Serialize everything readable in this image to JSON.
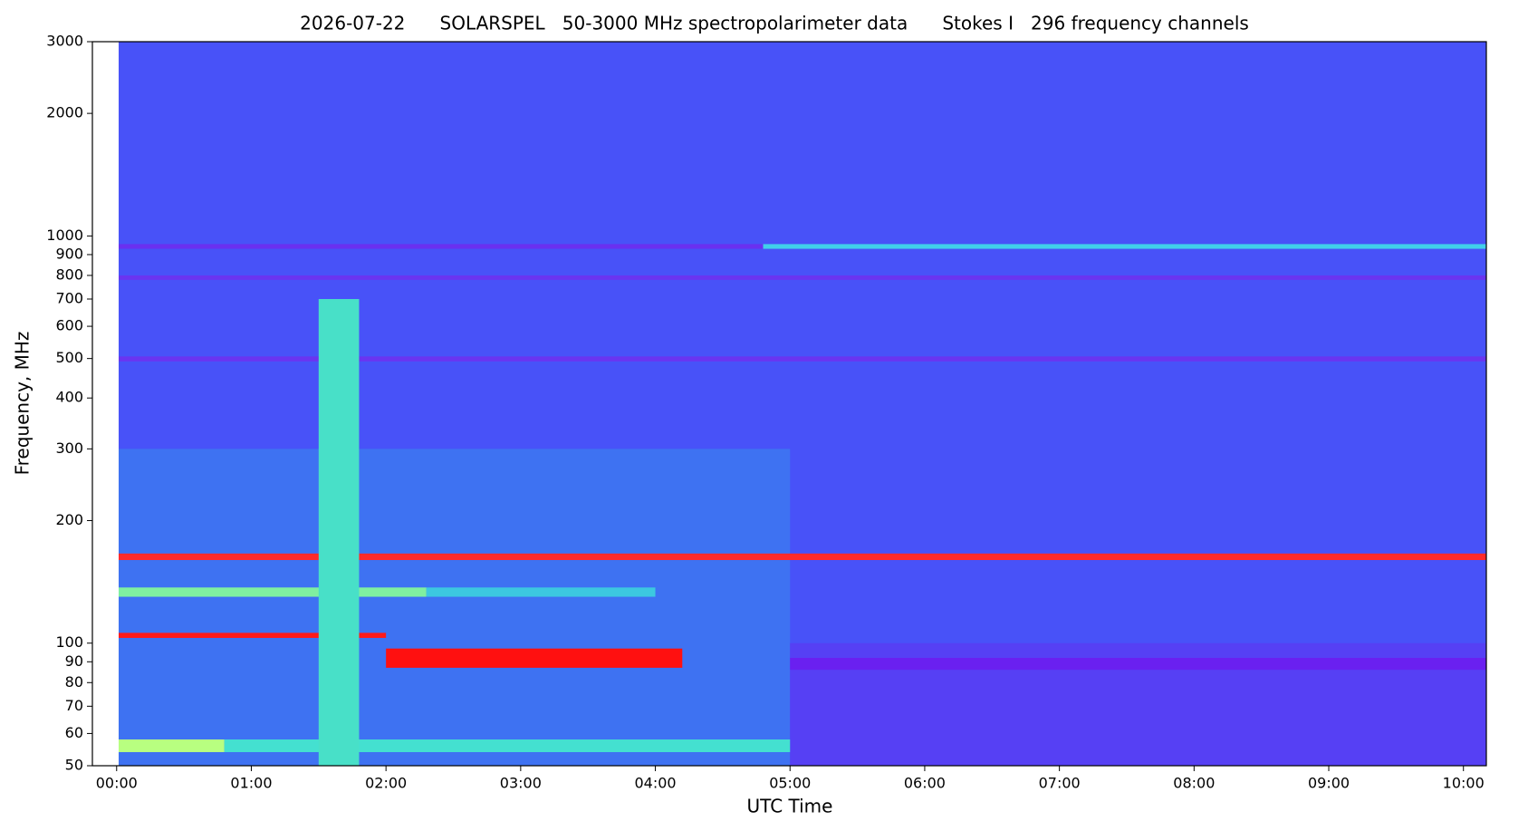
{
  "chart_data": {
    "type": "heatmap",
    "title": "2026-07-22      SOLARSPEL   50-3000 MHz spectropolarimeter data      Stokes I   296 frequency channels",
    "xlabel": "UTC Time",
    "ylabel": "Frequency, MHz",
    "xlim": [
      -0.18,
      10.17
    ],
    "ylim": [
      50,
      3000
    ],
    "yscale": "log",
    "xticks": [
      {
        "value": 0,
        "label": "00:00"
      },
      {
        "value": 1,
        "label": "01:00"
      },
      {
        "value": 2,
        "label": "02:00"
      },
      {
        "value": 3,
        "label": "03:00"
      },
      {
        "value": 4,
        "label": "04:00"
      },
      {
        "value": 5,
        "label": "05:00"
      },
      {
        "value": 6,
        "label": "06:00"
      },
      {
        "value": 7,
        "label": "07:00"
      },
      {
        "value": 8,
        "label": "08:00"
      },
      {
        "value": 9,
        "label": "09:00"
      },
      {
        "value": 10,
        "label": "10:00"
      }
    ],
    "yticks": [
      50,
      60,
      70,
      80,
      90,
      100,
      200,
      300,
      400,
      500,
      600,
      700,
      800,
      900,
      1000,
      2000,
      3000
    ],
    "features": [
      {
        "x": [
          0.015,
          10.17
        ],
        "y": [
          50,
          3000
        ],
        "color": "#4852f8"
      },
      {
        "x": [
          0.015,
          5
        ],
        "y": [
          50,
          300
        ],
        "color": "#3e72f2"
      },
      {
        "x": [
          5,
          10.17
        ],
        "y": [
          50,
          100
        ],
        "color": "#5640f4"
      },
      {
        "x": [
          0.015,
          2.3
        ],
        "y": [
          130,
          137
        ],
        "color": "#7ff0a0"
      },
      {
        "x": [
          2.3,
          4
        ],
        "y": [
          130,
          137
        ],
        "color": "#3cc8e0"
      },
      {
        "x": [
          0.015,
          10.17
        ],
        "y": [
          160,
          166
        ],
        "color": "#ff2a2a"
      },
      {
        "x": [
          0.015,
          2
        ],
        "y": [
          103,
          106
        ],
        "color": "#ff1a1a"
      },
      {
        "x": [
          2,
          4.2
        ],
        "y": [
          87,
          97
        ],
        "color": "#ff1010"
      },
      {
        "x": [
          5,
          10.17
        ],
        "y": [
          86,
          92
        ],
        "color": "#6a20f0"
      },
      {
        "x": [
          0.015,
          0.8
        ],
        "y": [
          54,
          58
        ],
        "color": "#b8ff80"
      },
      {
        "x": [
          0.8,
          5
        ],
        "y": [
          54,
          58
        ],
        "color": "#44e0d0"
      },
      {
        "x": [
          0.015,
          4.8
        ],
        "y": [
          930,
          955
        ],
        "color": "#6a30f0"
      },
      {
        "x": [
          4.8,
          10.17
        ],
        "y": [
          930,
          955
        ],
        "color": "#40d0ea"
      },
      {
        "x": [
          0.015,
          10.17
        ],
        "y": [
          780,
          800
        ],
        "color": "#6a34f0"
      },
      {
        "x": [
          0.015,
          10.17
        ],
        "y": [
          492,
          506
        ],
        "color": "#6a34f0"
      },
      {
        "x": [
          1.5,
          1.8
        ],
        "y": [
          50,
          700
        ],
        "color": "#48e0c8"
      }
    ]
  }
}
